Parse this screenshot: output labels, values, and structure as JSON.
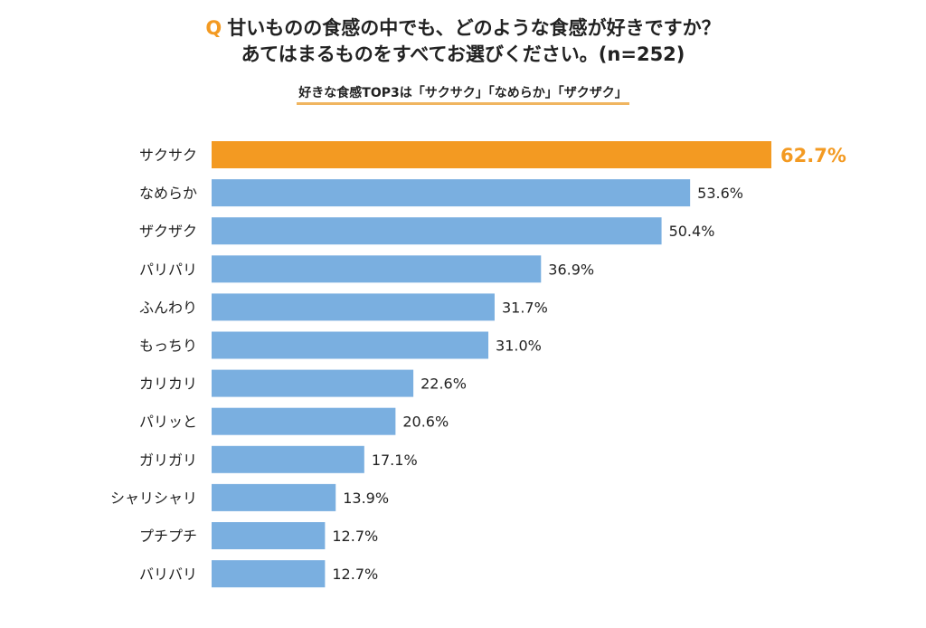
{
  "chart_data": {
    "type": "bar",
    "orientation": "horizontal",
    "title_prefix": "Q",
    "title_line1": "甘いものの食感の中でも、どのような食感が好きですか？",
    "title_line2": "あてはまるものをすべてお選びください。(n=252)",
    "subtitle": "好きな食感TOP3は「サクサク」「なめらか」「ザクザク」",
    "categories": [
      "サクサク",
      "なめらか",
      "ザクザク",
      "パリパリ",
      "ふんわり",
      "もっちり",
      "カリカリ",
      "パリッと",
      "ガリガリ",
      "シャリシャリ",
      "プチプチ",
      "バリバリ"
    ],
    "values": [
      62.7,
      53.6,
      50.4,
      36.9,
      31.7,
      31.0,
      22.6,
      20.6,
      17.1,
      13.9,
      12.7,
      12.7
    ],
    "labels": [
      "62.7%",
      "53.6%",
      "50.4%",
      "36.9%",
      "31.7%",
      "31.0%",
      "22.6%",
      "20.6%",
      "17.1%",
      "13.9%",
      "12.7%",
      "12.7%"
    ],
    "unit": "%",
    "xlim": [
      0,
      62.7
    ],
    "highlight_index": 0,
    "colors": {
      "highlight": "#f39a22",
      "default": "#7aafe0"
    },
    "grid": false
  }
}
